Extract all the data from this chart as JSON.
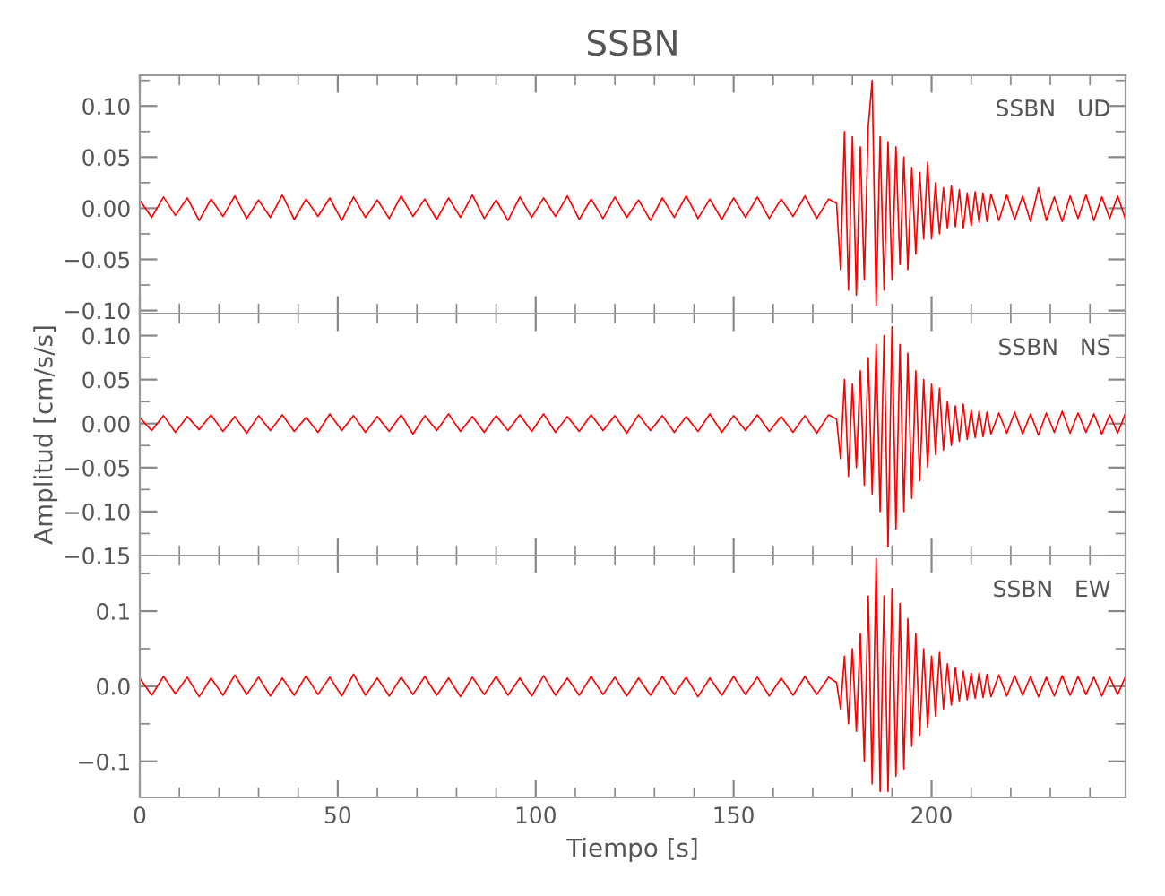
{
  "chart_data": [
    {
      "type": "line",
      "title": "SSBN",
      "annotations": [
        "SSBN   UD"
      ],
      "tick_labels": "y",
      "marker": "none",
      "line_style": "solid",
      "x": [
        0,
        3,
        6,
        9,
        12,
        15,
        18,
        21,
        24,
        27,
        30,
        33,
        36,
        39,
        42,
        45,
        48,
        51,
        54,
        57,
        60,
        63,
        66,
        69,
        72,
        75,
        78,
        81,
        84,
        87,
        90,
        93,
        96,
        99,
        102,
        105,
        108,
        111,
        114,
        117,
        120,
        123,
        126,
        129,
        132,
        135,
        138,
        141,
        144,
        147,
        150,
        153,
        156,
        159,
        162,
        165,
        168,
        171,
        174,
        176,
        177,
        178,
        179,
        180,
        181,
        182,
        183,
        184,
        185,
        186,
        187,
        188,
        189,
        190,
        191,
        192,
        193,
        194,
        195,
        196,
        197,
        198,
        199,
        200,
        201,
        202,
        203,
        204,
        205,
        206,
        207,
        208,
        209,
        210,
        211,
        212,
        213,
        214,
        215,
        217,
        219,
        221,
        223,
        225,
        227,
        229,
        231,
        233,
        235,
        237,
        239,
        241,
        243,
        245,
        247,
        249
      ],
      "series": [
        {
          "color": "#ff0000",
          "values": [
            0.008,
            -0.009,
            0.011,
            -0.007,
            0.01,
            -0.012,
            0.009,
            -0.008,
            0.012,
            -0.01,
            0.008,
            -0.009,
            0.013,
            -0.011,
            0.009,
            -0.008,
            0.01,
            -0.012,
            0.011,
            -0.009,
            0.008,
            -0.01,
            0.012,
            -0.008,
            0.009,
            -0.011,
            0.01,
            -0.009,
            0.013,
            -0.01,
            0.008,
            -0.012,
            0.011,
            -0.009,
            0.01,
            -0.008,
            0.012,
            -0.011,
            0.009,
            -0.01,
            0.011,
            -0.009,
            0.008,
            -0.012,
            0.01,
            -0.009,
            0.012,
            -0.01,
            0.009,
            -0.011,
            0.01,
            -0.009,
            0.011,
            -0.01,
            0.009,
            -0.008,
            0.012,
            -0.01,
            0.009,
            0.005,
            -0.06,
            0.075,
            -0.08,
            0.07,
            -0.085,
            0.06,
            -0.07,
            0.08,
            0.125,
            -0.095,
            0.07,
            -0.08,
            0.065,
            -0.07,
            0.06,
            -0.055,
            0.05,
            -0.06,
            0.04,
            -0.045,
            0.035,
            -0.03,
            0.045,
            -0.03,
            0.025,
            -0.025,
            0.02,
            -0.02,
            0.022,
            -0.018,
            0.018,
            -0.02,
            0.015,
            -0.017,
            0.016,
            -0.014,
            0.015,
            -0.013,
            0.014,
            -0.012,
            0.013,
            -0.011,
            0.012,
            -0.013,
            0.02,
            -0.012,
            0.011,
            -0.013,
            0.012,
            -0.01,
            0.013,
            -0.012,
            0.011,
            -0.01,
            0.012,
            -0.011
          ]
        }
      ],
      "xlim": [
        0,
        249
      ],
      "xticks": [
        0,
        50,
        100,
        150,
        200
      ],
      "ylim": [
        -0.103,
        0.13
      ],
      "yticks": [
        {
          "value": 0.1,
          "label": "0.10"
        },
        {
          "value": 0.05,
          "label": "0.05"
        },
        {
          "value": 0.0,
          "label": "0.00"
        },
        {
          "value": -0.05,
          "label": "−0.05"
        },
        {
          "value": -0.1,
          "label": "−0.10"
        }
      ]
    },
    {
      "type": "line",
      "ylabel": "Amplitud [cm/s/s]",
      "annotations": [
        "SSBN   NS"
      ],
      "tick_labels": "y",
      "marker": "none",
      "line_style": "solid",
      "x": [
        0,
        3,
        6,
        9,
        12,
        15,
        18,
        21,
        24,
        27,
        30,
        33,
        36,
        39,
        42,
        45,
        48,
        51,
        54,
        57,
        60,
        63,
        66,
        69,
        72,
        75,
        78,
        81,
        84,
        87,
        90,
        93,
        96,
        99,
        102,
        105,
        108,
        111,
        114,
        117,
        120,
        123,
        126,
        129,
        132,
        135,
        138,
        141,
        144,
        147,
        150,
        153,
        156,
        159,
        162,
        165,
        168,
        171,
        174,
        176,
        177,
        178,
        179,
        180,
        181,
        182,
        183,
        184,
        185,
        186,
        187,
        188,
        189,
        190,
        191,
        192,
        193,
        194,
        195,
        196,
        197,
        198,
        199,
        200,
        201,
        202,
        203,
        204,
        205,
        206,
        207,
        208,
        209,
        210,
        211,
        212,
        213,
        214,
        215,
        217,
        219,
        221,
        223,
        225,
        227,
        229,
        231,
        233,
        235,
        237,
        239,
        241,
        243,
        245,
        247,
        249
      ],
      "series": [
        {
          "color": "#ff0000",
          "values": [
            0.007,
            -0.008,
            0.009,
            -0.01,
            0.008,
            -0.007,
            0.01,
            -0.009,
            0.008,
            -0.011,
            0.009,
            -0.008,
            0.01,
            -0.009,
            0.007,
            -0.01,
            0.011,
            -0.008,
            0.009,
            -0.01,
            0.008,
            -0.009,
            0.01,
            -0.012,
            0.009,
            -0.008,
            0.011,
            -0.009,
            0.008,
            -0.01,
            0.009,
            -0.008,
            0.01,
            -0.009,
            0.011,
            -0.01,
            0.008,
            -0.009,
            0.01,
            -0.008,
            0.009,
            -0.011,
            0.01,
            -0.008,
            0.009,
            -0.01,
            0.008,
            -0.009,
            0.011,
            -0.01,
            0.009,
            -0.008,
            0.01,
            -0.009,
            0.008,
            -0.01,
            0.009,
            -0.011,
            0.01,
            0.005,
            -0.04,
            0.05,
            -0.06,
            0.045,
            -0.05,
            0.06,
            -0.07,
            0.075,
            -0.08,
            0.09,
            -0.1,
            0.1,
            -0.14,
            0.11,
            -0.12,
            0.09,
            -0.1,
            0.08,
            -0.085,
            0.06,
            -0.065,
            0.05,
            -0.05,
            0.045,
            -0.035,
            0.04,
            -0.03,
            0.025,
            -0.025,
            0.02,
            -0.02,
            0.022,
            -0.018,
            0.015,
            -0.016,
            0.014,
            -0.015,
            0.013,
            -0.012,
            0.012,
            -0.011,
            0.013,
            -0.012,
            0.011,
            -0.013,
            0.012,
            -0.01,
            0.014,
            -0.011,
            0.012,
            -0.01,
            0.011,
            -0.012,
            0.01,
            -0.011,
            0.012
          ]
        }
      ],
      "xlim": [
        0,
        249
      ],
      "xticks": [
        0,
        50,
        100,
        150,
        200
      ],
      "ylim": [
        -0.15,
        0.125
      ],
      "yticks": [
        {
          "value": 0.1,
          "label": "0.10"
        },
        {
          "value": 0.05,
          "label": "0.05"
        },
        {
          "value": 0.0,
          "label": "0.00"
        },
        {
          "value": -0.05,
          "label": "−0.05"
        },
        {
          "value": -0.1,
          "label": "−0.10"
        },
        {
          "value": -0.15,
          "label": "−0.15"
        }
      ]
    },
    {
      "type": "line",
      "xlabel": "Tiempo [s]",
      "annotations": [
        "SSBN   EW"
      ],
      "marker": "none",
      "line_style": "solid",
      "x": [
        0,
        3,
        6,
        9,
        12,
        15,
        18,
        21,
        24,
        27,
        30,
        33,
        36,
        39,
        42,
        45,
        48,
        51,
        54,
        57,
        60,
        63,
        66,
        69,
        72,
        75,
        78,
        81,
        84,
        87,
        90,
        93,
        96,
        99,
        102,
        105,
        108,
        111,
        114,
        117,
        120,
        123,
        126,
        129,
        132,
        135,
        138,
        141,
        144,
        147,
        150,
        153,
        156,
        159,
        162,
        165,
        168,
        171,
        174,
        176,
        177,
        178,
        179,
        180,
        181,
        182,
        183,
        184,
        185,
        186,
        187,
        188,
        189,
        190,
        191,
        192,
        193,
        194,
        195,
        196,
        197,
        198,
        199,
        200,
        201,
        202,
        203,
        204,
        205,
        206,
        207,
        208,
        209,
        210,
        211,
        212,
        213,
        214,
        215,
        217,
        219,
        221,
        223,
        225,
        227,
        229,
        231,
        233,
        235,
        237,
        239,
        241,
        243,
        245,
        247,
        249
      ],
      "series": [
        {
          "color": "#ff0000",
          "values": [
            0.011,
            -0.012,
            0.013,
            -0.01,
            0.012,
            -0.014,
            0.011,
            -0.012,
            0.015,
            -0.011,
            0.012,
            -0.013,
            0.011,
            -0.012,
            0.014,
            -0.011,
            0.012,
            -0.013,
            0.016,
            -0.012,
            0.011,
            -0.013,
            0.012,
            -0.011,
            0.013,
            -0.012,
            0.011,
            -0.014,
            0.012,
            -0.011,
            0.013,
            -0.012,
            0.011,
            -0.013,
            0.014,
            -0.012,
            0.011,
            -0.012,
            0.013,
            -0.011,
            0.012,
            -0.013,
            0.011,
            -0.012,
            0.013,
            -0.011,
            0.012,
            -0.014,
            0.011,
            -0.012,
            0.013,
            -0.011,
            0.012,
            -0.013,
            0.011,
            -0.012,
            0.013,
            -0.011,
            0.012,
            0.005,
            -0.03,
            0.04,
            -0.05,
            0.05,
            -0.06,
            0.07,
            -0.1,
            0.12,
            -0.13,
            0.17,
            -0.14,
            0.12,
            -0.14,
            0.13,
            -0.12,
            0.11,
            -0.11,
            0.09,
            -0.08,
            0.07,
            -0.065,
            0.05,
            -0.055,
            0.04,
            -0.04,
            0.045,
            -0.03,
            0.03,
            -0.025,
            0.025,
            -0.02,
            0.02,
            -0.018,
            0.017,
            -0.016,
            0.018,
            -0.015,
            0.016,
            -0.014,
            0.015,
            -0.013,
            0.014,
            -0.012,
            0.013,
            -0.014,
            0.012,
            -0.013,
            0.014,
            -0.012,
            0.013,
            -0.011,
            0.012,
            -0.013,
            0.012,
            -0.011,
            0.013
          ]
        }
      ],
      "xlim": [
        0,
        249
      ],
      "xticks": [
        0,
        50,
        100,
        150,
        200
      ],
      "ylim": [
        -0.148,
        0.174
      ],
      "yticks": [
        {
          "value": 0.1,
          "label": "0.1"
        },
        {
          "value": 0.0,
          "label": "0.0"
        },
        {
          "value": -0.1,
          "label": "−0.1"
        }
      ]
    }
  ]
}
